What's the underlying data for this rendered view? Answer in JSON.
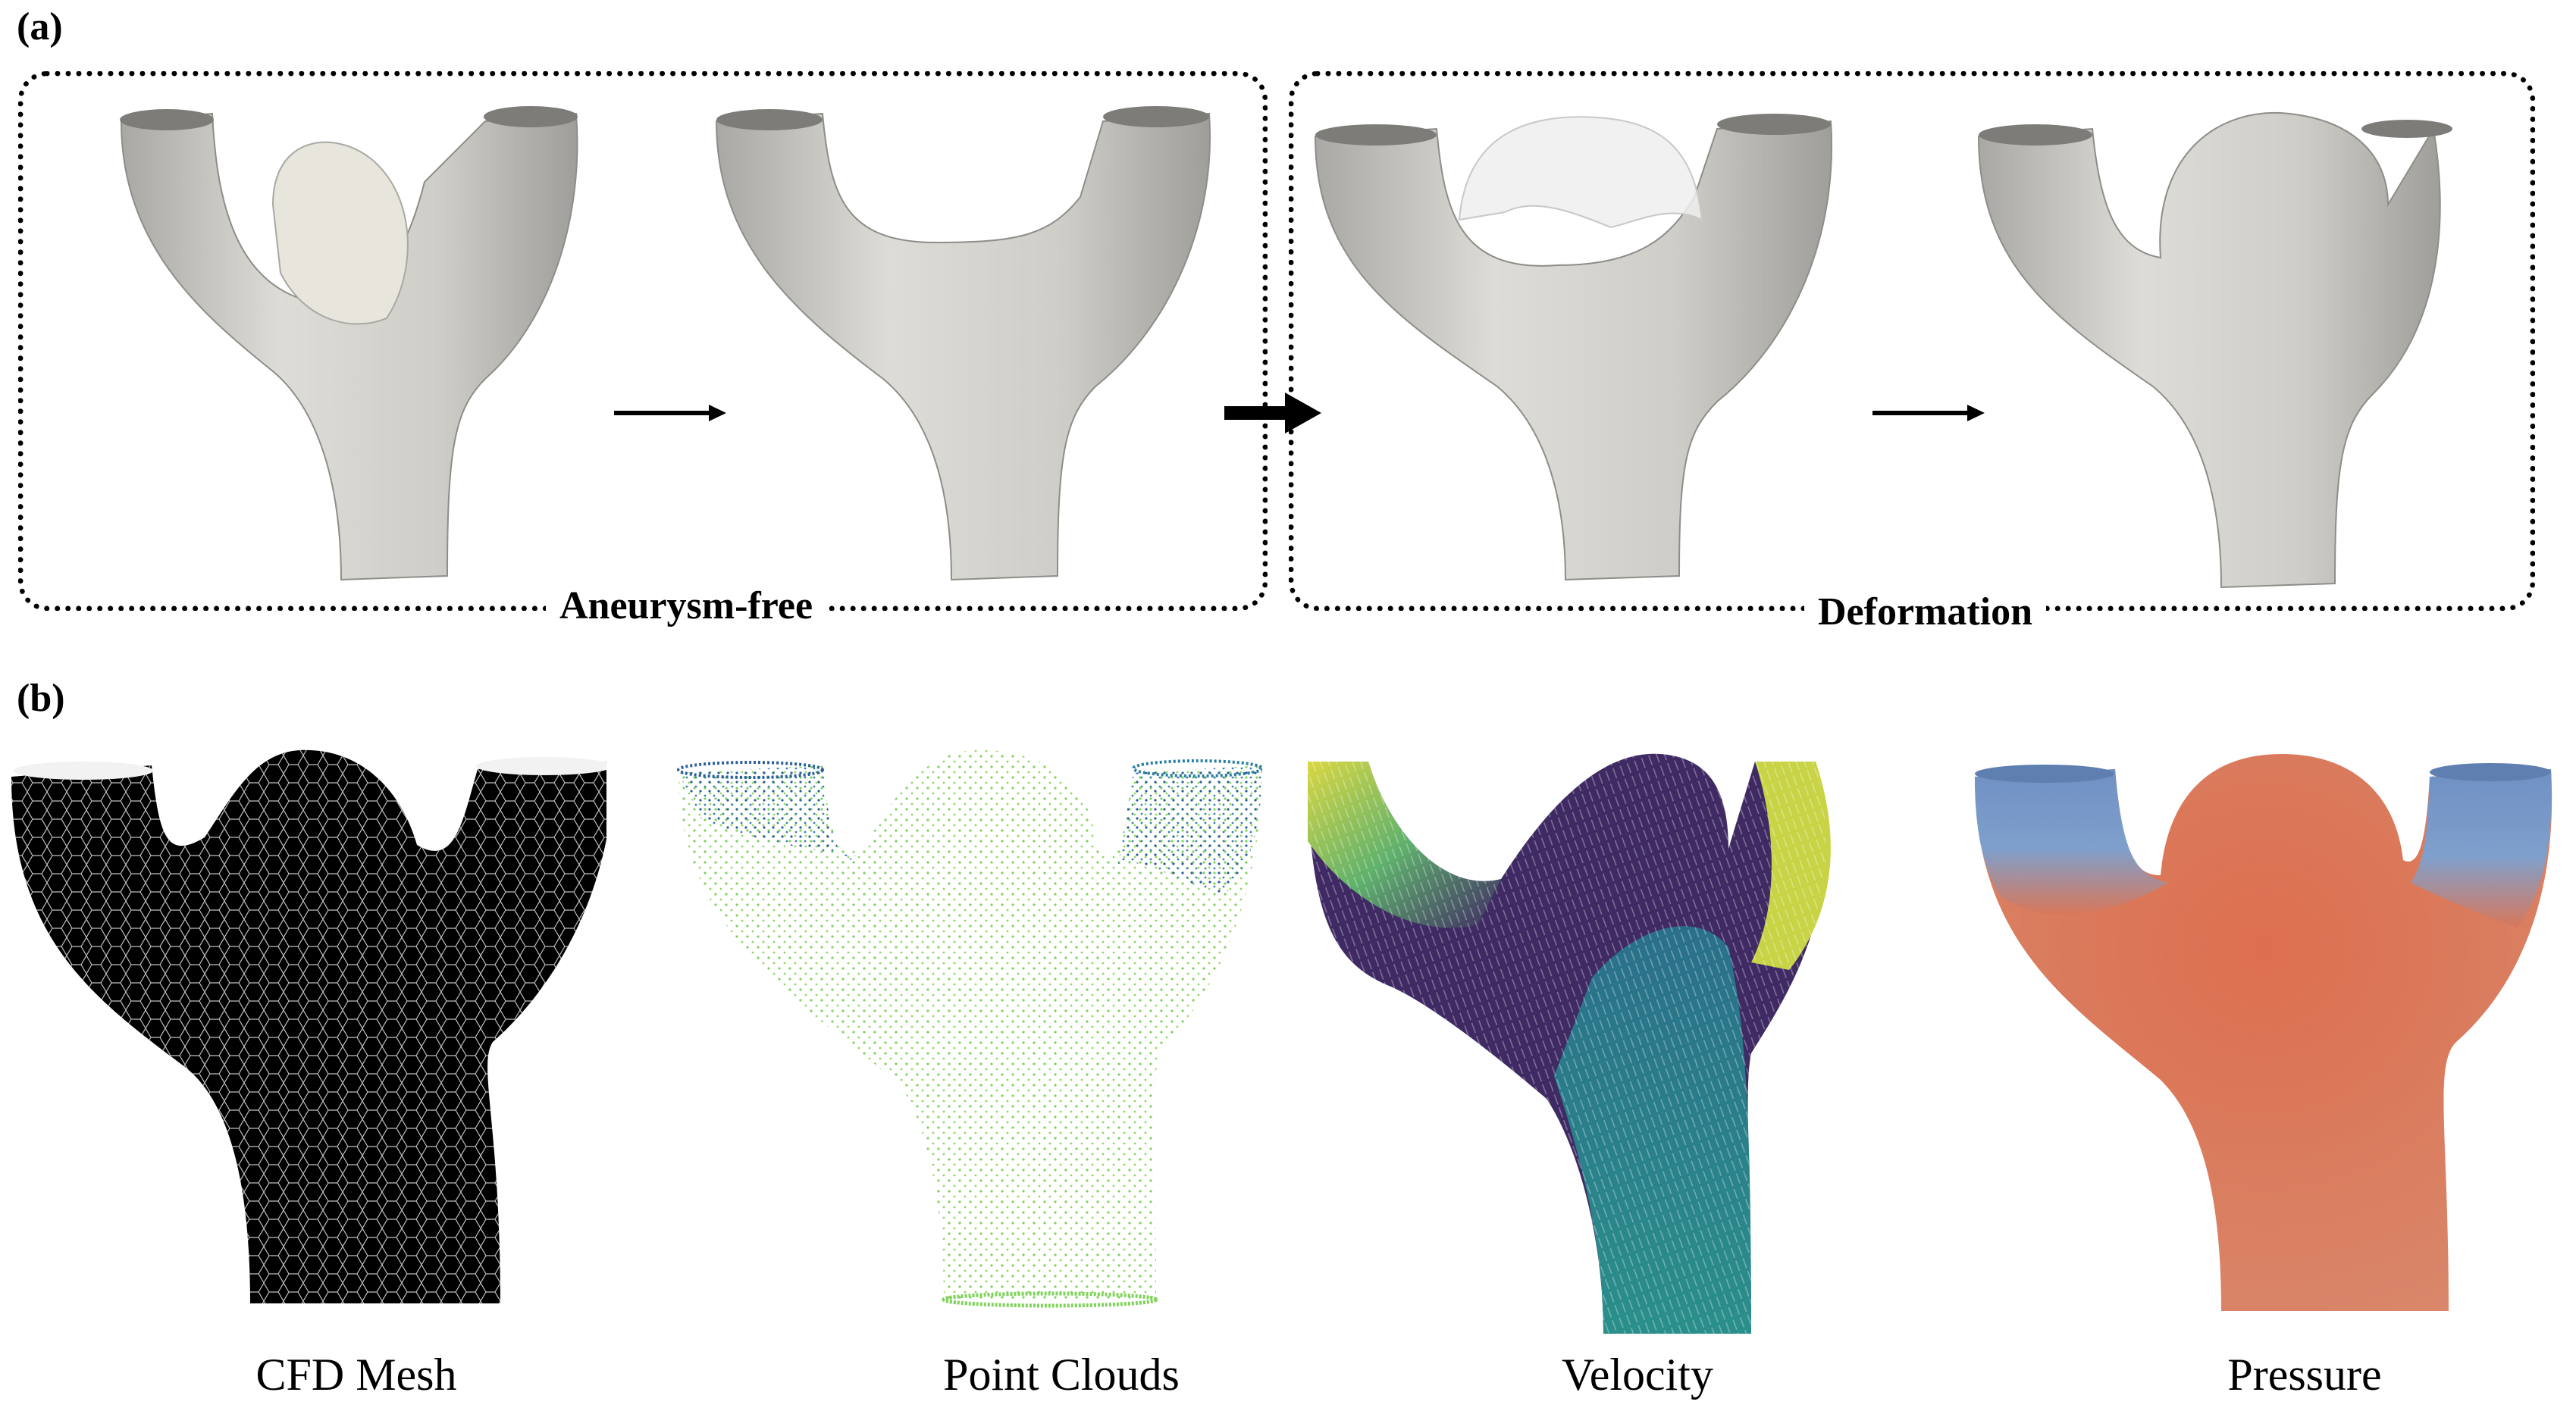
{
  "figure": {
    "panel_a": {
      "label": "(a)",
      "group_left_caption": "Aneurysm-free",
      "group_right_caption": "Deformation"
    },
    "panel_b": {
      "label": "(b)",
      "captions": [
        "CFD Mesh",
        "Point Clouds",
        "Velocity",
        "Pressure"
      ]
    },
    "colors": {
      "mesh_surface": "#d8d6d0",
      "mesh_shadow": "#a9a8a4",
      "cfd_mesh_fill": "#000000",
      "pressure_high": "#d9775a",
      "pressure_low": "#6f90c4",
      "velocity_low": "#3f2a63",
      "velocity_mid": "#2a8f8a",
      "velocity_high": "#d9d742",
      "points_green": "#7fd35a",
      "points_blue": "#2a5f9a"
    }
  }
}
